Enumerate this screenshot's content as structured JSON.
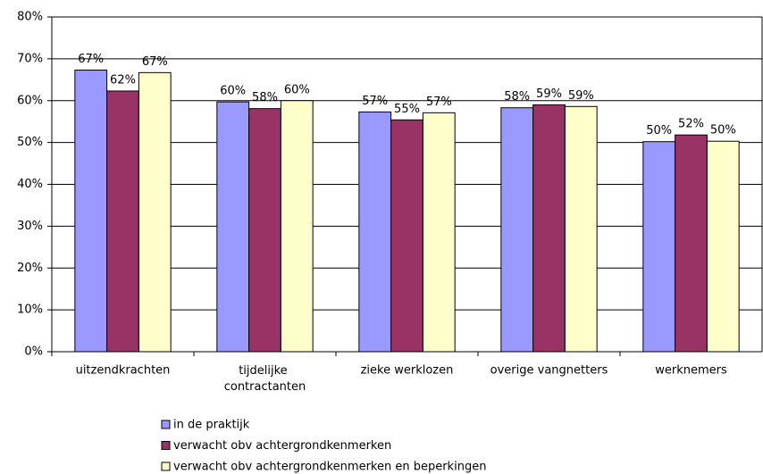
{
  "chart_data": {
    "type": "bar",
    "categories": [
      "uitzendkrachten",
      "tijdelijke contractanten",
      "zieke werklozen",
      "overige vangnetters",
      "werknemers"
    ],
    "series": [
      {
        "name": "in de praktijk",
        "color": "#9999ff",
        "values": [
          67.3,
          59.7,
          57.3,
          58.3,
          50.2
        ],
        "value_labels": [
          "67%",
          "60%",
          "57%",
          "58%",
          "50%"
        ]
      },
      {
        "name": "verwacht obv achtergrondkenmerken",
        "color": "#993366",
        "values": [
          62.3,
          58.1,
          55.4,
          59.0,
          51.8
        ],
        "value_labels": [
          "62%",
          "58%",
          "55%",
          "59%",
          "52%"
        ]
      },
      {
        "name": "verwacht obv achtergrondkenmerken en beperkingen",
        "color": "#ffffcc",
        "values": [
          66.7,
          60.0,
          57.1,
          58.6,
          50.3
        ],
        "value_labels": [
          "67%",
          "60%",
          "57%",
          "59%",
          "50%"
        ]
      }
    ],
    "ylim": [
      0,
      80
    ],
    "yticks": [
      {
        "value": 0,
        "label": "0%"
      },
      {
        "value": 10,
        "label": "10%"
      },
      {
        "value": 20,
        "label": "20%"
      },
      {
        "value": 30,
        "label": "30%"
      },
      {
        "value": 40,
        "label": "40%"
      },
      {
        "value": 50,
        "label": "50%"
      },
      {
        "value": 60,
        "label": "60%"
      },
      {
        "value": 70,
        "label": "70%"
      },
      {
        "value": 80,
        "label": "80%"
      }
    ],
    "grid": true,
    "legend": "bottom"
  }
}
